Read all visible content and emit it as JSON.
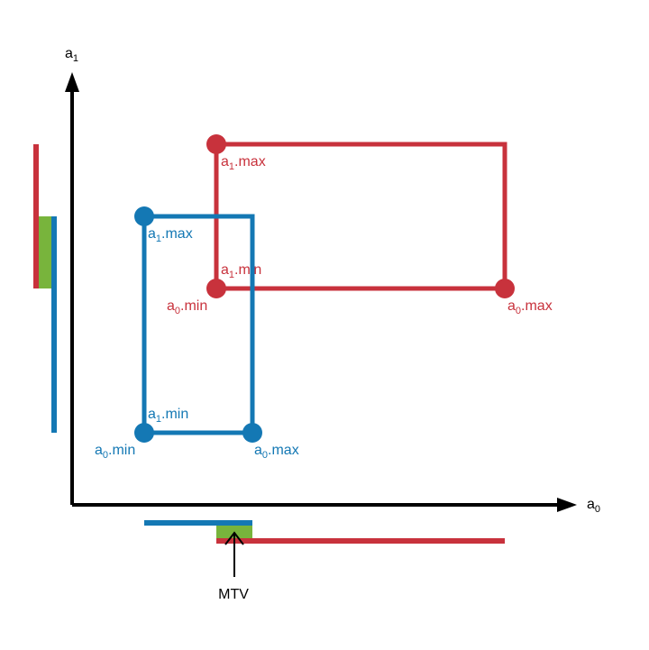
{
  "colors": {
    "red": "#c8323c",
    "blue": "#1478b4",
    "green": "#78b43c",
    "axis": "#000000"
  },
  "axes": {
    "x": {
      "base": "a",
      "sub": "0"
    },
    "y": {
      "base": "a",
      "sub": "1"
    }
  },
  "red_box": {
    "a1_max": {
      "base": "a",
      "sub": "1",
      "suffix": ".max"
    },
    "a1_min": {
      "base": "a",
      "sub": "1",
      "suffix": ".min"
    },
    "a0_min": {
      "base": "a",
      "sub": "0",
      "suffix": ".min"
    },
    "a0_max": {
      "base": "a",
      "sub": "0",
      "suffix": ".max"
    }
  },
  "blue_box": {
    "a1_max": {
      "base": "a",
      "sub": "1",
      "suffix": ".max"
    },
    "a1_min": {
      "base": "a",
      "sub": "1",
      "suffix": ".min"
    },
    "a0_min": {
      "base": "a",
      "sub": "0",
      "suffix": ".min"
    },
    "a0_max": {
      "base": "a",
      "sub": "0",
      "suffix": ".max"
    }
  },
  "mtv_label": "MTV"
}
